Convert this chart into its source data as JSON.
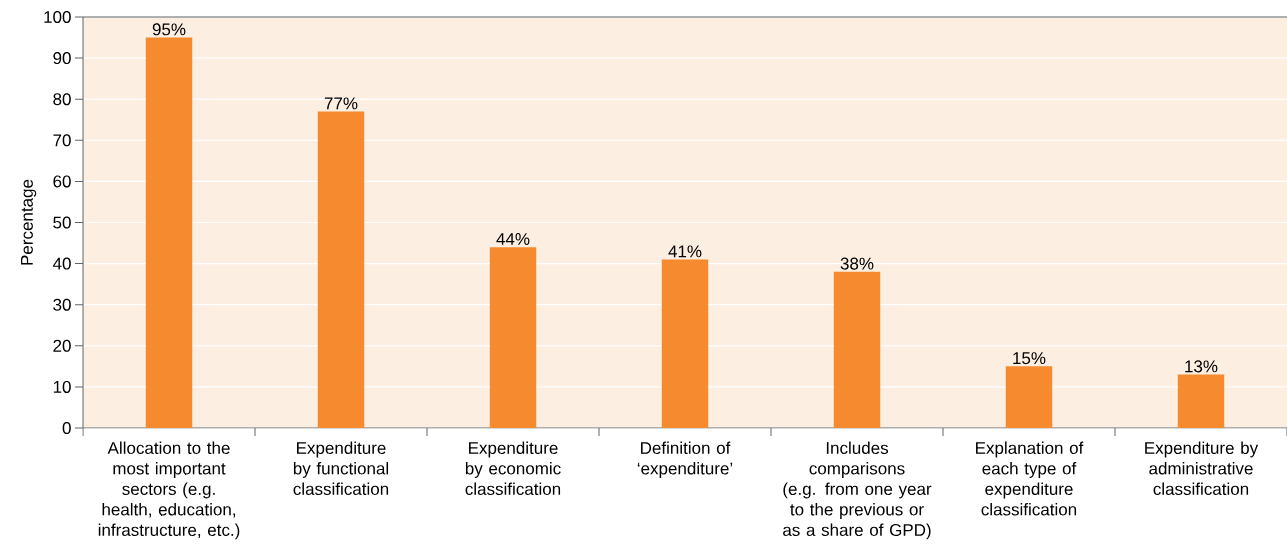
{
  "chart_data": {
    "type": "bar",
    "ylabel": "Percentage",
    "categories": [
      "Allocation to the most important sectors (e.g. health, education, infrastructure, etc.)",
      "Expenditure by functional classification",
      "Expenditure by economic classification",
      "Definition of ‘expenditure’",
      "Includes comparisons (e.g. from one year to the previous or as a share of GPD)",
      "Explanation of each type of expenditure classification",
      "Expenditure by administrative classification"
    ],
    "values": [
      95,
      77,
      44,
      41,
      38,
      15,
      13
    ],
    "value_labels": [
      "95%",
      "77%",
      "44%",
      "41%",
      "38%",
      "15%",
      "13%"
    ],
    "color": "#f58a2f",
    "ylim": [
      0,
      100
    ],
    "yticks": [
      0,
      10,
      20,
      30,
      40,
      50,
      60,
      70,
      80,
      90,
      100
    ],
    "grid": "y"
  }
}
